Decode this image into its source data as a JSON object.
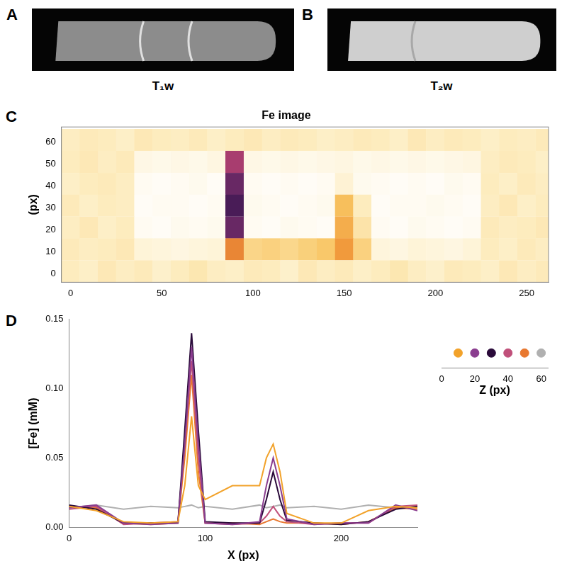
{
  "images": [
    {
      "panel": "A",
      "label": "T₁w"
    },
    {
      "panel": "B",
      "label": "T₂w"
    }
  ],
  "chart_data": [
    {
      "panel": "C",
      "type": "heatmap",
      "title": "Fe image",
      "ylabel": "(px)",
      "xlim": [
        -5,
        262
      ],
      "ylim": [
        -4,
        67
      ],
      "xticks": [
        0,
        50,
        100,
        150,
        200,
        250
      ],
      "yticks": [
        0,
        10,
        20,
        30,
        40,
        50,
        60
      ],
      "grid": false,
      "color_range": [
        0,
        0.15
      ],
      "x_bins": [
        -5,
        5,
        15,
        25,
        35,
        45,
        55,
        65,
        75,
        85,
        95,
        105,
        115,
        125,
        135,
        145,
        155,
        165,
        175,
        185,
        195,
        205,
        215,
        225,
        235,
        245,
        255,
        265
      ],
      "y_bins": [
        -4,
        6,
        16,
        26,
        36,
        46,
        56,
        66
      ],
      "cells": [
        [
          0.015,
          0.013,
          0.017,
          0.014,
          0.016,
          0.012,
          0.015,
          0.018,
          0.014,
          0.013,
          0.016,
          0.015,
          0.012,
          0.017,
          0.014,
          0.016,
          0.013,
          0.015,
          0.018,
          0.014,
          0.012,
          0.016,
          0.015,
          0.013,
          0.017,
          0.014,
          0.016
        ],
        [
          0.016,
          0.014,
          0.015,
          0.017,
          0.009,
          0.008,
          0.007,
          0.008,
          0.009,
          0.07,
          0.028,
          0.03,
          0.027,
          0.031,
          0.035,
          0.06,
          0.03,
          0.008,
          0.007,
          0.009,
          0.008,
          0.007,
          0.009,
          0.015,
          0.013,
          0.016,
          0.014
        ],
        [
          0.014,
          0.017,
          0.013,
          0.015,
          0.003,
          0.002,
          0.004,
          0.003,
          0.004,
          0.12,
          0.003,
          0.002,
          0.004,
          0.003,
          0.002,
          0.05,
          0.02,
          0.003,
          0.002,
          0.004,
          0.003,
          0.002,
          0.003,
          0.016,
          0.014,
          0.015,
          0.017
        ],
        [
          0.016,
          0.013,
          0.015,
          0.014,
          0.002,
          0.003,
          0.003,
          0.002,
          0.003,
          0.13,
          0.004,
          0.003,
          0.002,
          0.003,
          0.004,
          0.04,
          0.015,
          0.002,
          0.003,
          0.003,
          0.004,
          0.003,
          0.002,
          0.014,
          0.017,
          0.013,
          0.015
        ],
        [
          0.013,
          0.015,
          0.016,
          0.014,
          0.003,
          0.002,
          0.003,
          0.004,
          0.002,
          0.12,
          0.003,
          0.002,
          0.003,
          0.002,
          0.003,
          0.01,
          0.004,
          0.003,
          0.002,
          0.003,
          0.002,
          0.004,
          0.003,
          0.015,
          0.013,
          0.016,
          0.014
        ],
        [
          0.015,
          0.017,
          0.014,
          0.016,
          0.006,
          0.005,
          0.006,
          0.005,
          0.007,
          0.1,
          0.006,
          0.005,
          0.006,
          0.005,
          0.006,
          0.007,
          0.005,
          0.006,
          0.005,
          0.006,
          0.005,
          0.006,
          0.007,
          0.014,
          0.016,
          0.015,
          0.013
        ],
        [
          0.014,
          0.016,
          0.015,
          0.013,
          0.017,
          0.015,
          0.014,
          0.016,
          0.013,
          0.015,
          0.017,
          0.014,
          0.016,
          0.015,
          0.013,
          0.014,
          0.016,
          0.015,
          0.013,
          0.017,
          0.014,
          0.016,
          0.015,
          0.013,
          0.015,
          0.014,
          0.016
        ]
      ]
    },
    {
      "panel": "D",
      "type": "line",
      "xlabel": "X (px)",
      "ylabel": "[Fe] (mM)",
      "zlabel": "Z (px)",
      "xlim": [
        0,
        256
      ],
      "xticks": [
        0,
        100,
        200
      ],
      "ylim": [
        0,
        0.15
      ],
      "yticks": [
        {
          "value": 0,
          "label": "0.00"
        },
        {
          "value": 0.05,
          "label": "0.05"
        },
        {
          "value": 0.1,
          "label": "0.10"
        },
        {
          "value": 0.15,
          "label": "0.15"
        }
      ],
      "zlim": [
        0,
        64
      ],
      "zticks": [
        0,
        20,
        40,
        60
      ],
      "grid": false,
      "x": [
        0,
        20,
        40,
        60,
        80,
        85,
        90,
        95,
        100,
        120,
        140,
        145,
        150,
        155,
        160,
        180,
        200,
        220,
        240,
        256
      ],
      "series": [
        {
          "z": 10,
          "color": "#f2a22a",
          "values": [
            0.015,
            0.012,
            0.004,
            0.003,
            0.004,
            0.03,
            0.08,
            0.03,
            0.02,
            0.03,
            0.03,
            0.05,
            0.06,
            0.04,
            0.01,
            0.003,
            0.003,
            0.012,
            0.015,
            0.014
          ]
        },
        {
          "z": 20,
          "color": "#8a3d8f",
          "values": [
            0.014,
            0.016,
            0.003,
            0.002,
            0.003,
            0.06,
            0.13,
            0.06,
            0.003,
            0.002,
            0.004,
            0.03,
            0.05,
            0.03,
            0.006,
            0.002,
            0.003,
            0.003,
            0.016,
            0.012
          ]
        },
        {
          "z": 30,
          "color": "#2a0a3a",
          "values": [
            0.016,
            0.013,
            0.003,
            0.003,
            0.003,
            0.07,
            0.14,
            0.07,
            0.004,
            0.003,
            0.003,
            0.02,
            0.04,
            0.02,
            0.005,
            0.003,
            0.002,
            0.004,
            0.013,
            0.015
          ]
        },
        {
          "z": 40,
          "color": "#c0507a",
          "values": [
            0.013,
            0.015,
            0.002,
            0.003,
            0.004,
            0.06,
            0.12,
            0.05,
            0.003,
            0.002,
            0.003,
            0.008,
            0.015,
            0.008,
            0.004,
            0.002,
            0.003,
            0.003,
            0.015,
            0.016
          ]
        },
        {
          "z": 50,
          "color": "#e87830",
          "values": [
            0.015,
            0.014,
            0.003,
            0.002,
            0.003,
            0.05,
            0.11,
            0.04,
            0.003,
            0.003,
            0.002,
            0.004,
            0.006,
            0.004,
            0.003,
            0.003,
            0.002,
            0.004,
            0.014,
            0.013
          ]
        },
        {
          "z": 60,
          "color": "#b0b0b0",
          "values": [
            0.014,
            0.016,
            0.013,
            0.015,
            0.014,
            0.015,
            0.016,
            0.014,
            0.015,
            0.013,
            0.016,
            0.014,
            0.015,
            0.016,
            0.014,
            0.015,
            0.013,
            0.016,
            0.014,
            0.015
          ]
        }
      ]
    }
  ]
}
